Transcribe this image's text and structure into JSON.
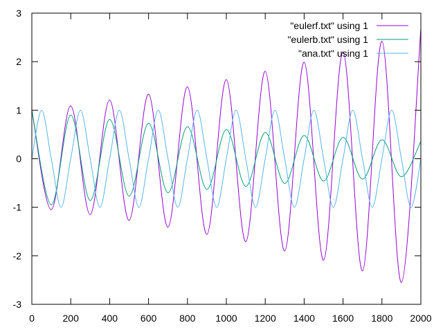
{
  "chart_data": {
    "type": "line",
    "title": "",
    "xlabel": "",
    "ylabel": "",
    "xlim": [
      0,
      2000
    ],
    "ylim": [
      -3,
      3
    ],
    "x_ticks": [
      "0",
      "200",
      "400",
      "600",
      "800",
      "1000",
      "1200",
      "1400",
      "1600",
      "1800",
      "2000"
    ],
    "y_ticks": [
      "3",
      "2",
      "1",
      "0",
      "-1",
      "-2",
      "-3"
    ],
    "grid": false,
    "legend_position": "top-right",
    "series": [
      {
        "name": "\"eulerf.txt\" using 1",
        "color": "#9400d3",
        "x": [
          0,
          100,
          200,
          300,
          400,
          500,
          600,
          700,
          800,
          900,
          1000,
          1100,
          1200,
          1300,
          1400,
          1500,
          1600,
          1700,
          1800,
          1900,
          2000
        ],
        "y": [
          1.0,
          -1.05,
          1.09,
          -1.15,
          1.21,
          -1.27,
          1.33,
          -1.41,
          1.48,
          -1.56,
          1.63,
          -1.71,
          1.8,
          -1.9,
          1.99,
          -2.09,
          2.2,
          -2.31,
          2.42,
          -2.55,
          2.68
        ]
      },
      {
        "name": "\"eulerb.txt\" using 1",
        "color": "#009e73",
        "x": [
          0,
          100,
          200,
          300,
          400,
          500,
          600,
          700,
          800,
          900,
          1000,
          1100,
          1200,
          1300,
          1400,
          1500,
          1600,
          1700,
          1800,
          1900,
          2000
        ],
        "y": [
          1.0,
          -0.95,
          0.9,
          -0.86,
          0.81,
          -0.77,
          0.73,
          -0.7,
          0.66,
          -0.63,
          0.6,
          -0.57,
          0.54,
          -0.51,
          0.48,
          -0.46,
          0.44,
          -0.42,
          0.39,
          -0.37,
          0.36
        ]
      },
      {
        "name": "\"ana.txt\" using 1",
        "color": "#56b4e9",
        "x": [
          0,
          50,
          100,
          150,
          200,
          250,
          300,
          350,
          400,
          450,
          500,
          550,
          600,
          650,
          700,
          750,
          800,
          850,
          900,
          950,
          1000,
          1050,
          1100,
          1150,
          1200,
          1250,
          1300,
          1350,
          1400,
          1450,
          1500,
          1550,
          1600,
          1650,
          1700,
          1750,
          1800,
          1850,
          1900,
          1950,
          2000
        ],
        "y": [
          0,
          1,
          0,
          -1,
          0,
          1,
          0,
          -1,
          0,
          1,
          0,
          -1,
          0,
          1,
          0,
          -1,
          0,
          1,
          0,
          -1,
          0,
          1,
          0,
          -1,
          0,
          1,
          0,
          -1,
          0,
          1,
          0,
          -1,
          0,
          1,
          0,
          -1,
          0,
          1,
          0,
          -1,
          0
        ]
      }
    ]
  }
}
